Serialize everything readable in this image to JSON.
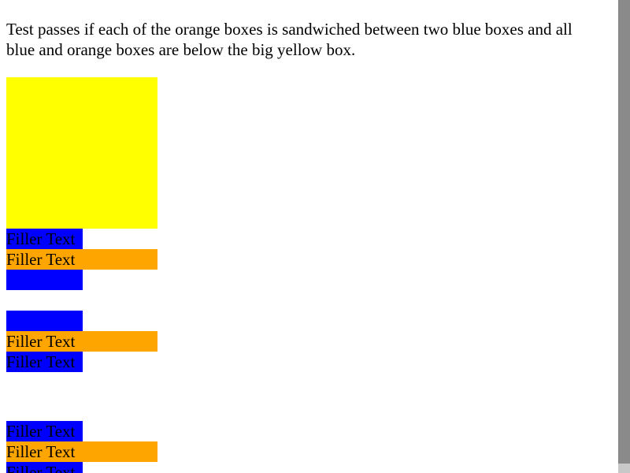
{
  "instructions": "Test passes if each of the orange boxes is sandwiched between two blue boxes and all blue and orange boxes are below the big yellow box.",
  "colors": {
    "yellow": "#ffff00",
    "blue": "#0000ff",
    "orange": "#ffa500",
    "scrollbar": "#8a8a8a"
  },
  "groups": [
    {
      "top_blue": "Filler Text",
      "orange": "Filler Text",
      "bottom_blue": ""
    },
    {
      "top_blue": "",
      "orange": "Filler Text",
      "bottom_blue": "Filler Text"
    },
    {
      "top_blue": "Filler Text",
      "orange": "Filler Text",
      "bottom_blue": "Filler Text"
    }
  ]
}
